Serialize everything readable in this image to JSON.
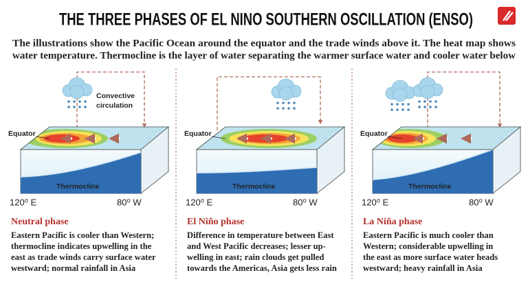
{
  "header": {
    "title": "THE THREE PHASES OF EL NINO SOUTHERN OSCILLATION (ENSO)",
    "intro": [
      "The illustrations show the Pacific Ocean around the equator and the trade winds above it. The heat map shows",
      "water temperature. Thermocline is the layer of water separating the warmer surface water and cooler water below"
    ]
  },
  "panels": [
    {
      "phase": "Neutral phase",
      "labels": {
        "circulation": "Convective circulation",
        "equator": "Equator",
        "thermocline": "Thermocline",
        "west": "120⁰ E",
        "east": "80⁰ W"
      },
      "description": [
        "Eastern Pacific is cooler than Western;",
        "thermocline indicates upwelling in the",
        "east as trade winds carry surface water",
        "westward; normal rainfall in Asia"
      ]
    },
    {
      "phase": "El Niño phase",
      "labels": {
        "equator": "Equator",
        "thermocline": "Thermocline",
        "west": "120⁰ E",
        "east": "80⁰ W"
      },
      "description": [
        "Difference in temperature between East",
        "and West Pacific decreases; lesser up-",
        "welling in east; rain clouds get pulled",
        "towards the Americas, Asia gets less rain"
      ]
    },
    {
      "phase": "La Niña phase",
      "labels": {
        "equator": "Equator",
        "thermocline": "Thermocline",
        "west": "120⁰ E",
        "east": "80⁰ W"
      },
      "description": [
        "Eastern Pacific is much cooler than",
        "Western; considerable upwelling in",
        "the east as more surface water heads",
        "westward; heavy rainfall in Asia"
      ]
    }
  ]
}
